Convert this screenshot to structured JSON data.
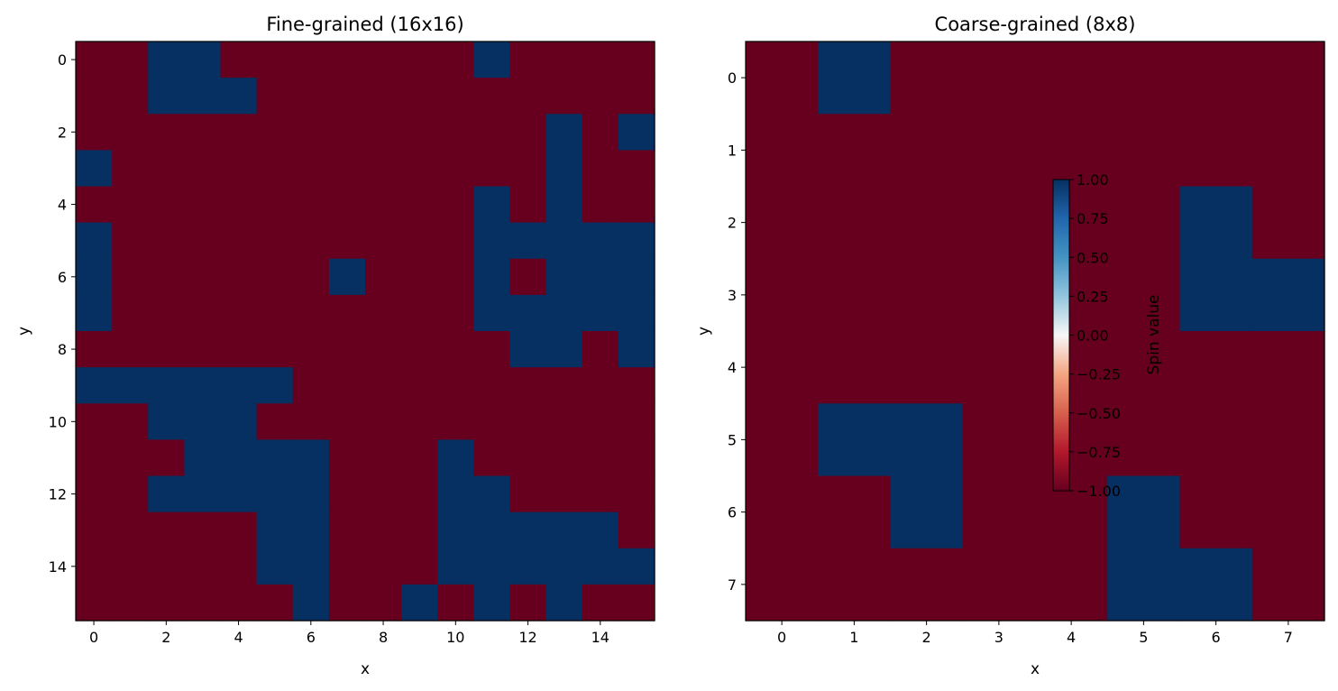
{
  "colors": {
    "spin_up": "#053061",
    "spin_down": "#67001f",
    "colormap": "RdBu",
    "axes_edge": "#000000"
  },
  "chart_data": [
    {
      "type": "heatmap",
      "title": "Fine-grained (16x16)",
      "xlabel": "x",
      "ylabel": "y",
      "xlim": [
        -0.5,
        15.5
      ],
      "ylim": [
        15.5,
        -0.5
      ],
      "x_ticks": [
        0,
        2,
        4,
        6,
        8,
        10,
        12,
        14
      ],
      "y_ticks": [
        0,
        2,
        4,
        6,
        8,
        10,
        12,
        14
      ],
      "value_range": [
        -1,
        1
      ],
      "grid": [
        [
          -1,
          -1,
          1,
          1,
          -1,
          -1,
          -1,
          -1,
          -1,
          -1,
          -1,
          1,
          -1,
          -1,
          -1,
          -1
        ],
        [
          -1,
          -1,
          1,
          1,
          1,
          -1,
          -1,
          -1,
          -1,
          -1,
          -1,
          -1,
          -1,
          -1,
          -1,
          -1
        ],
        [
          -1,
          -1,
          -1,
          -1,
          -1,
          -1,
          -1,
          -1,
          -1,
          -1,
          -1,
          -1,
          -1,
          1,
          -1,
          1
        ],
        [
          1,
          -1,
          -1,
          -1,
          -1,
          -1,
          -1,
          -1,
          -1,
          -1,
          -1,
          -1,
          -1,
          1,
          -1,
          -1
        ],
        [
          -1,
          -1,
          -1,
          -1,
          -1,
          -1,
          -1,
          -1,
          -1,
          -1,
          -1,
          1,
          -1,
          1,
          -1,
          -1
        ],
        [
          1,
          -1,
          -1,
          -1,
          -1,
          -1,
          -1,
          -1,
          -1,
          -1,
          -1,
          1,
          1,
          1,
          1,
          1
        ],
        [
          1,
          -1,
          -1,
          -1,
          -1,
          -1,
          -1,
          1,
          -1,
          -1,
          -1,
          1,
          -1,
          1,
          1,
          1
        ],
        [
          1,
          -1,
          -1,
          -1,
          -1,
          -1,
          -1,
          -1,
          -1,
          -1,
          -1,
          1,
          1,
          1,
          1,
          1
        ],
        [
          -1,
          -1,
          -1,
          -1,
          -1,
          -1,
          -1,
          -1,
          -1,
          -1,
          -1,
          -1,
          1,
          1,
          -1,
          1
        ],
        [
          1,
          1,
          1,
          1,
          1,
          1,
          -1,
          -1,
          -1,
          -1,
          -1,
          -1,
          -1,
          -1,
          -1,
          -1
        ],
        [
          -1,
          -1,
          1,
          1,
          1,
          -1,
          -1,
          -1,
          -1,
          -1,
          -1,
          -1,
          -1,
          -1,
          -1,
          -1
        ],
        [
          -1,
          -1,
          -1,
          1,
          1,
          1,
          1,
          -1,
          -1,
          -1,
          1,
          -1,
          -1,
          -1,
          -1,
          -1
        ],
        [
          -1,
          -1,
          1,
          1,
          1,
          1,
          1,
          -1,
          -1,
          -1,
          1,
          1,
          -1,
          -1,
          -1,
          -1
        ],
        [
          -1,
          -1,
          -1,
          -1,
          -1,
          1,
          1,
          -1,
          -1,
          -1,
          1,
          1,
          1,
          1,
          1,
          -1
        ],
        [
          -1,
          -1,
          -1,
          -1,
          -1,
          1,
          1,
          -1,
          -1,
          -1,
          1,
          1,
          1,
          1,
          1,
          1
        ],
        [
          -1,
          -1,
          -1,
          -1,
          -1,
          -1,
          1,
          -1,
          -1,
          1,
          -1,
          1,
          -1,
          1,
          -1,
          -1
        ]
      ]
    },
    {
      "type": "heatmap",
      "title": "Coarse-grained (8x8)",
      "xlabel": "x",
      "ylabel": "y",
      "xlim": [
        -0.5,
        7.5
      ],
      "ylim": [
        7.5,
        -0.5
      ],
      "x_ticks": [
        0,
        1,
        2,
        3,
        4,
        5,
        6,
        7
      ],
      "y_ticks": [
        0,
        1,
        2,
        3,
        4,
        5,
        6,
        7
      ],
      "value_range": [
        -1,
        1
      ],
      "grid": [
        [
          -1,
          1,
          -1,
          -1,
          -1,
          -1,
          -1,
          -1
        ],
        [
          -1,
          -1,
          -1,
          -1,
          -1,
          -1,
          -1,
          -1
        ],
        [
          -1,
          -1,
          -1,
          -1,
          -1,
          -1,
          1,
          -1
        ],
        [
          -1,
          -1,
          -1,
          -1,
          -1,
          -1,
          1,
          1
        ],
        [
          -1,
          -1,
          -1,
          -1,
          -1,
          -1,
          -1,
          -1
        ],
        [
          -1,
          1,
          1,
          -1,
          -1,
          -1,
          -1,
          -1
        ],
        [
          -1,
          -1,
          1,
          -1,
          -1,
          1,
          -1,
          -1
        ],
        [
          -1,
          -1,
          -1,
          -1,
          -1,
          1,
          1,
          -1
        ]
      ],
      "colorbar": {
        "label": "Spin value",
        "range": [
          -1,
          1
        ],
        "ticks": [
          1.0,
          0.75,
          0.5,
          0.25,
          0.0,
          -0.25,
          -0.5,
          -0.75,
          -1.0
        ],
        "tick_labels": [
          "1.00",
          "0.75",
          "0.50",
          "0.25",
          "0.00",
          "−0.25",
          "−0.50",
          "−0.75",
          "−1.00"
        ]
      }
    }
  ]
}
